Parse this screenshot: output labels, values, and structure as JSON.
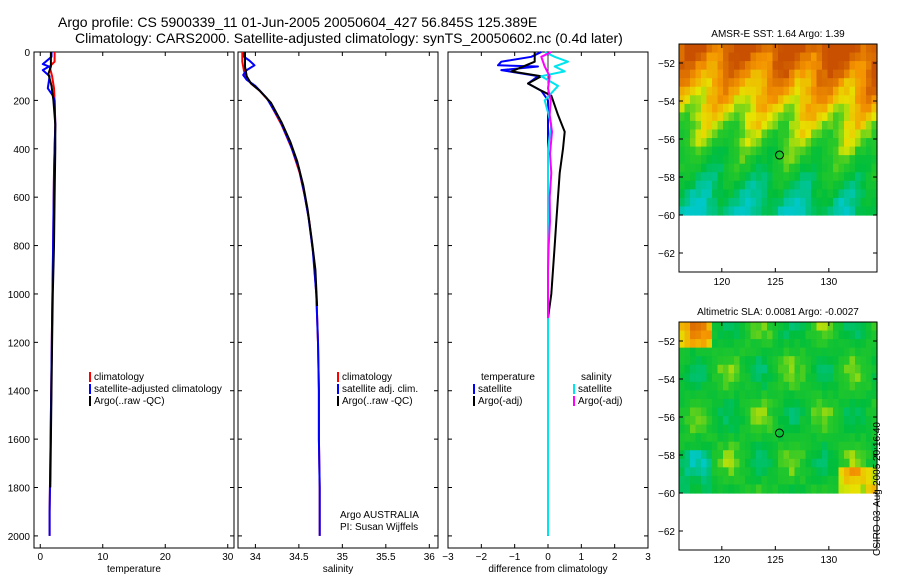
{
  "titles": {
    "line1": "Argo profile: CS 5900339_11 01-Jun-2005 20050604_427 56.845S 125.389E",
    "line2": "Climatology: CARS2000. Satellite-adjusted climatology: synTS_20050602.nc (0.4d later)"
  },
  "stamp": "CSIRO 03-Aug-2005 20:16:40",
  "colors": {
    "climatology": "#ff0000",
    "satellite": "#0000ff",
    "argo": "#000000",
    "salinity": "#00e5ee",
    "salinity_adj": "#ff00ff"
  },
  "chart_data": [
    {
      "type": "line",
      "title": "",
      "xlabel": "temperature",
      "ylabel": "",
      "xlim": [
        -1,
        31
      ],
      "ylim": [
        2050,
        0
      ],
      "xticks": [
        0,
        10,
        20,
        30
      ],
      "yticks": [
        0,
        200,
        400,
        600,
        800,
        1000,
        1200,
        1400,
        1600,
        1800,
        2000
      ],
      "series": [
        {
          "name": "climatology",
          "color": "#ff0000",
          "points": [
            [
              2.3,
              0
            ],
            [
              2.3,
              40
            ],
            [
              1.5,
              60
            ],
            [
              1.9,
              100
            ],
            [
              2.2,
              150
            ],
            [
              2.3,
              200
            ],
            [
              2.4,
              300
            ],
            [
              2.3,
              400
            ],
            [
              2.2,
              500
            ],
            [
              2.1,
              700
            ],
            [
              2.0,
              900
            ],
            [
              1.9,
              1100
            ],
            [
              1.8,
              1300
            ],
            [
              1.7,
              1500
            ],
            [
              1.6,
              1700
            ],
            [
              1.5,
              1900
            ],
            [
              1.5,
              2000
            ]
          ]
        },
        {
          "name": "satellite-adjusted climatology",
          "color": "#0000ff",
          "points": [
            [
              1.8,
              0
            ],
            [
              1.8,
              20
            ],
            [
              0.4,
              50
            ],
            [
              1.4,
              60
            ],
            [
              0.4,
              75
            ],
            [
              1.5,
              100
            ],
            [
              1.2,
              150
            ],
            [
              2.0,
              180
            ],
            [
              2.3,
              200
            ],
            [
              2.4,
              300
            ],
            [
              2.3,
              400
            ],
            [
              2.2,
              500
            ],
            [
              2.1,
              700
            ],
            [
              2.0,
              900
            ],
            [
              1.9,
              1100
            ],
            [
              1.8,
              1300
            ],
            [
              1.7,
              1500
            ],
            [
              1.6,
              1700
            ],
            [
              1.5,
              1900
            ],
            [
              1.5,
              2000
            ]
          ]
        },
        {
          "name": "Argo(..raw -QC)",
          "color": "#000000",
          "points": [
            [
              1.7,
              0
            ],
            [
              1.7,
              60
            ],
            [
              1.3,
              90
            ],
            [
              1.8,
              140
            ],
            [
              2.1,
              200
            ],
            [
              2.4,
              300
            ],
            [
              2.4,
              400
            ],
            [
              2.3,
              600
            ],
            [
              2.2,
              800
            ],
            [
              2.0,
              1000
            ],
            [
              1.9,
              1200
            ],
            [
              1.8,
              1400
            ],
            [
              1.7,
              1600
            ],
            [
              1.6,
              1800
            ]
          ]
        }
      ],
      "legend": [
        "climatology",
        "satellite-adjusted climatology",
        "Argo(..raw -QC)"
      ]
    },
    {
      "type": "line",
      "title": "",
      "xlabel": "salinity",
      "ylabel": "",
      "xlim": [
        33.8,
        36.1
      ],
      "ylim": [
        2050,
        0
      ],
      "xticks": [
        34,
        34.5,
        35,
        35.5,
        36
      ],
      "series": [
        {
          "name": "climatology",
          "color": "#ff0000",
          "points": [
            [
              33.85,
              0
            ],
            [
              33.85,
              40
            ],
            [
              33.87,
              80
            ],
            [
              33.9,
              110
            ],
            [
              33.95,
              130
            ],
            [
              34.05,
              160
            ],
            [
              34.15,
              200
            ],
            [
              34.3,
              300
            ],
            [
              34.42,
              400
            ],
            [
              34.51,
              500
            ],
            [
              34.57,
              600
            ],
            [
              34.62,
              700
            ],
            [
              34.67,
              850
            ],
            [
              34.7,
              1000
            ],
            [
              34.72,
              1200
            ],
            [
              34.73,
              1400
            ],
            [
              34.73,
              1600
            ],
            [
              34.74,
              1800
            ],
            [
              34.74,
              2000
            ]
          ]
        },
        {
          "name": "satellite adj. clim.",
          "color": "#0000ff",
          "points": [
            [
              33.87,
              0
            ],
            [
              33.87,
              20
            ],
            [
              33.93,
              35
            ],
            [
              33.99,
              55
            ],
            [
              33.9,
              75
            ],
            [
              33.86,
              95
            ],
            [
              33.9,
              115
            ],
            [
              34.0,
              140
            ],
            [
              34.13,
              190
            ],
            [
              34.28,
              280
            ],
            [
              34.4,
              380
            ],
            [
              34.5,
              480
            ],
            [
              34.56,
              580
            ],
            [
              34.61,
              680
            ],
            [
              34.66,
              820
            ],
            [
              34.7,
              1000
            ],
            [
              34.72,
              1200
            ],
            [
              34.73,
              1400
            ],
            [
              34.73,
              1600
            ],
            [
              34.74,
              1800
            ],
            [
              34.74,
              2000
            ]
          ]
        },
        {
          "name": "Argo(..raw -QC)",
          "color": "#000000",
          "points": [
            [
              33.88,
              0
            ],
            [
              33.88,
              60
            ],
            [
              33.9,
              100
            ],
            [
              33.95,
              130
            ],
            [
              34.05,
              160
            ],
            [
              34.18,
              210
            ],
            [
              34.3,
              290
            ],
            [
              34.4,
              370
            ],
            [
              34.48,
              450
            ],
            [
              34.55,
              550
            ],
            [
              34.6,
              650
            ],
            [
              34.65,
              780
            ],
            [
              34.69,
              900
            ],
            [
              34.71,
              1050
            ]
          ]
        }
      ],
      "legend": [
        "climatology",
        "satellite adj. clim.",
        "Argo(..raw -QC)"
      ],
      "annotations": [
        "Argo AUSTRALIA",
        "PI: Susan Wijffels"
      ]
    },
    {
      "type": "line",
      "title": "",
      "xlabel": "difference from climatology",
      "ylabel": "",
      "xlim": [
        -3,
        3
      ],
      "ylim": [
        2050,
        0
      ],
      "xticks": [
        -3,
        -2,
        -1,
        0,
        1,
        2,
        3
      ],
      "series": [
        {
          "name": "temperature satellite",
          "color": "#0000ff",
          "points": [
            [
              -0.2,
              0
            ],
            [
              -0.5,
              20
            ],
            [
              -1.4,
              40
            ],
            [
              -1.5,
              55
            ],
            [
              -0.3,
              60
            ],
            [
              -1.4,
              75
            ],
            [
              -0.3,
              100
            ],
            [
              -0.6,
              130
            ],
            [
              -0.2,
              160
            ],
            [
              0,
              200
            ],
            [
              0,
              300
            ],
            [
              0,
              2000
            ]
          ]
        },
        {
          "name": "temperature Argo(-adj)",
          "color": "#000000",
          "points": [
            [
              -0.4,
              0
            ],
            [
              -0.4,
              40
            ],
            [
              -1.1,
              80
            ],
            [
              -0.2,
              100
            ],
            [
              -0.6,
              130
            ],
            [
              -0.2,
              160
            ],
            [
              0.1,
              180
            ],
            [
              0.3,
              260
            ],
            [
              0.5,
              330
            ],
            [
              0.45,
              400
            ],
            [
              0.35,
              500
            ],
            [
              0.3,
              600
            ],
            [
              0.25,
              700
            ],
            [
              0.2,
              800
            ],
            [
              0.15,
              900
            ],
            [
              0.1,
              1000
            ],
            [
              0,
              1100
            ],
            [
              0,
              1300
            ]
          ]
        },
        {
          "name": "salinity satellite",
          "color": "#00e5ee",
          "points": [
            [
              -0.1,
              0
            ],
            [
              0.2,
              20
            ],
            [
              0.6,
              40
            ],
            [
              0.2,
              60
            ],
            [
              0.5,
              80
            ],
            [
              -0.2,
              100
            ],
            [
              0.3,
              140
            ],
            [
              -0.1,
              200
            ],
            [
              0.1,
              300
            ],
            [
              0,
              400
            ],
            [
              0,
              2000
            ]
          ]
        },
        {
          "name": "salinity Argo(-adj)",
          "color": "#ff00ff",
          "points": [
            [
              0.1,
              0
            ],
            [
              -0.2,
              20
            ],
            [
              -0.1,
              60
            ],
            [
              0.05,
              100
            ],
            [
              0,
              150
            ],
            [
              0.08,
              200
            ],
            [
              0.05,
              260
            ],
            [
              0.12,
              330
            ],
            [
              0.06,
              420
            ],
            [
              0.1,
              500
            ],
            [
              0.05,
              600
            ],
            [
              0.06,
              700
            ],
            [
              0.02,
              800
            ],
            [
              0,
              900
            ],
            [
              0,
              1100
            ]
          ]
        }
      ],
      "legend_left_title": "temperature",
      "legend_right_title": "salinity",
      "legend": [
        "satellite",
        "Argo(-adj)",
        "satellite",
        "Argo(-adj)"
      ]
    },
    {
      "type": "heatmap",
      "title": "AMSR-E SST: 1.64 Argo: 1.39",
      "xlim": [
        116,
        134.5
      ],
      "ylim": [
        -63,
        -51
      ],
      "data_lat_range": [
        -60,
        -51
      ],
      "xticks": [
        120,
        125,
        130
      ],
      "yticks": [
        -52,
        -54,
        -56,
        -58,
        -60,
        -62
      ],
      "marker": [
        125.389,
        -56.845
      ]
    },
    {
      "type": "heatmap",
      "title": "Altimetric SLA: 0.0081 Argo: -0.0027",
      "xlim": [
        116,
        134.5
      ],
      "ylim": [
        -63,
        -51
      ],
      "data_lat_range": [
        -60,
        -51
      ],
      "xticks": [
        120,
        125,
        130
      ],
      "yticks": [
        -52,
        -54,
        -56,
        -58,
        -60,
        -62
      ],
      "marker": [
        125.389,
        -56.845
      ]
    }
  ]
}
